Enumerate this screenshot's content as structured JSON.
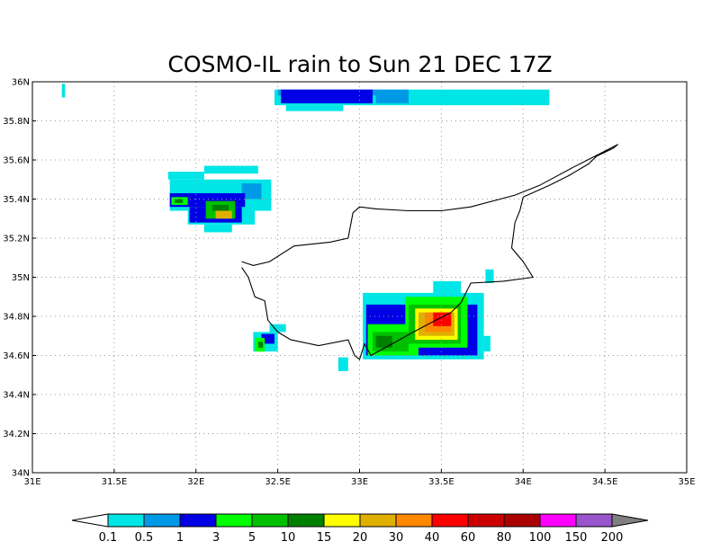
{
  "chart_data": {
    "type": "heatmap",
    "title": "COSMO-IL rain to Sun 21 DEC 17Z",
    "x_range": [
      31,
      35
    ],
    "y_range": [
      34,
      36
    ],
    "x_ticks": [
      {
        "value": 31,
        "label": "31E"
      },
      {
        "value": 31.5,
        "label": "31.5E"
      },
      {
        "value": 32,
        "label": "32E"
      },
      {
        "value": 32.5,
        "label": "32.5E"
      },
      {
        "value": 33,
        "label": "33E"
      },
      {
        "value": 33.5,
        "label": "33.5E"
      },
      {
        "value": 34,
        "label": "34E"
      },
      {
        "value": 34.5,
        "label": "34.5E"
      },
      {
        "value": 35,
        "label": "35E"
      }
    ],
    "y_ticks": [
      {
        "value": 34,
        "label": "34N"
      },
      {
        "value": 34.2,
        "label": "34.2N"
      },
      {
        "value": 34.4,
        "label": "34.4N"
      },
      {
        "value": 34.6,
        "label": "34.6N"
      },
      {
        "value": 34.8,
        "label": "34.8N"
      },
      {
        "value": 35,
        "label": "35N"
      },
      {
        "value": 35.2,
        "label": "35.2N"
      },
      {
        "value": 35.4,
        "label": "35.4N"
      },
      {
        "value": 35.6,
        "label": "35.6N"
      },
      {
        "value": 35.8,
        "label": "35.8N"
      },
      {
        "value": 36,
        "label": "36N"
      }
    ],
    "grid": true,
    "colorbar": {
      "labels": [
        "0.1",
        "0.5",
        "1",
        "3",
        "5",
        "10",
        "15",
        "20",
        "30",
        "40",
        "60",
        "80",
        "100",
        "150",
        "200"
      ],
      "colors": [
        "#00e5e5",
        "#0099e6",
        "#0000e6",
        "#00ff00",
        "#00c000",
        "#008000",
        "#ffff00",
        "#e0b000",
        "#ff8800",
        "#ff0000",
        "#cc0000",
        "#aa0000",
        "#ff00ff",
        "#9955cc"
      ],
      "under_color": "#ffffff",
      "over_color": "#808080"
    },
    "rain_cells": [
      {
        "lon0": 31.18,
        "lon1": 31.2,
        "lat0": 35.92,
        "lat1": 35.99,
        "class": "0.1"
      },
      {
        "lon0": 32.48,
        "lon1": 34.16,
        "lat0": 35.88,
        "lat1": 35.96,
        "class": "0.1"
      },
      {
        "lon0": 32.55,
        "lon1": 32.9,
        "lat0": 35.85,
        "lat1": 35.88,
        "class": "0.1"
      },
      {
        "lon0": 32.5,
        "lon1": 33.1,
        "lat0": 35.93,
        "lat1": 35.96,
        "class": "0.5"
      },
      {
        "lon0": 33.1,
        "lon1": 33.3,
        "lat0": 35.89,
        "lat1": 35.96,
        "class": "0.5"
      },
      {
        "lon0": 32.52,
        "lon1": 33.08,
        "lat0": 35.89,
        "lat1": 35.96,
        "class": "1"
      },
      {
        "lon0": 31.83,
        "lon1": 32.05,
        "lat0": 35.5,
        "lat1": 35.54,
        "class": "0.1"
      },
      {
        "lon0": 32.05,
        "lon1": 32.38,
        "lat0": 35.53,
        "lat1": 35.57,
        "class": "0.1"
      },
      {
        "lon0": 31.84,
        "lon1": 32.46,
        "lat0": 35.34,
        "lat1": 35.5,
        "class": "0.1"
      },
      {
        "lon0": 31.95,
        "lon1": 32.36,
        "lat0": 35.27,
        "lat1": 35.34,
        "class": "0.1"
      },
      {
        "lon0": 32.05,
        "lon1": 32.22,
        "lat0": 35.23,
        "lat1": 35.27,
        "class": "0.1"
      },
      {
        "lon0": 32.28,
        "lon1": 32.4,
        "lat0": 35.4,
        "lat1": 35.48,
        "class": "0.5"
      },
      {
        "lon0": 31.84,
        "lon1": 32.3,
        "lat0": 35.36,
        "lat1": 35.43,
        "class": "1"
      },
      {
        "lon0": 31.96,
        "lon1": 32.28,
        "lat0": 35.28,
        "lat1": 35.36,
        "class": "1"
      },
      {
        "lon0": 31.85,
        "lon1": 31.95,
        "lat0": 35.37,
        "lat1": 35.41,
        "class": "3"
      },
      {
        "lon0": 32.06,
        "lon1": 32.24,
        "lat0": 35.3,
        "lat1": 35.39,
        "class": "5"
      },
      {
        "lon0": 31.87,
        "lon1": 31.92,
        "lat0": 35.38,
        "lat1": 35.4,
        "class": "10"
      },
      {
        "lon0": 32.1,
        "lon1": 32.2,
        "lat0": 35.34,
        "lat1": 35.37,
        "class": "10"
      },
      {
        "lon0": 32.12,
        "lon1": 32.22,
        "lat0": 35.3,
        "lat1": 35.34,
        "class": "20"
      },
      {
        "lon0": 32.35,
        "lon1": 32.5,
        "lat0": 34.62,
        "lat1": 34.72,
        "class": "0.1"
      },
      {
        "lon0": 32.45,
        "lon1": 32.55,
        "lat0": 34.72,
        "lat1": 34.76,
        "class": "0.1"
      },
      {
        "lon0": 32.4,
        "lon1": 32.48,
        "lat0": 34.66,
        "lat1": 34.71,
        "class": "1"
      },
      {
        "lon0": 32.36,
        "lon1": 32.42,
        "lat0": 34.62,
        "lat1": 34.69,
        "class": "3"
      },
      {
        "lon0": 32.38,
        "lon1": 32.41,
        "lat0": 34.64,
        "lat1": 34.67,
        "class": "10"
      },
      {
        "lon0": 32.87,
        "lon1": 32.93,
        "lat0": 34.52,
        "lat1": 34.59,
        "class": "0.1"
      },
      {
        "lon0": 33.02,
        "lon1": 33.76,
        "lat0": 34.58,
        "lat1": 34.92,
        "class": "0.1"
      },
      {
        "lon0": 33.45,
        "lon1": 33.62,
        "lat0": 34.92,
        "lat1": 34.98,
        "class": "0.1"
      },
      {
        "lon0": 33.77,
        "lon1": 33.82,
        "lat0": 34.97,
        "lat1": 35.04,
        "class": "0.1"
      },
      {
        "lon0": 33.76,
        "lon1": 33.8,
        "lat0": 34.62,
        "lat1": 34.7,
        "class": "0.1"
      },
      {
        "lon0": 33.04,
        "lon1": 33.72,
        "lat0": 34.6,
        "lat1": 34.86,
        "class": "1"
      },
      {
        "lon0": 33.05,
        "lon1": 33.36,
        "lat0": 34.6,
        "lat1": 34.76,
        "class": "3"
      },
      {
        "lon0": 33.28,
        "lon1": 33.66,
        "lat0": 34.64,
        "lat1": 34.9,
        "class": "3"
      },
      {
        "lon0": 33.08,
        "lon1": 33.3,
        "lat0": 34.62,
        "lat1": 34.72,
        "class": "5"
      },
      {
        "lon0": 33.3,
        "lon1": 33.62,
        "lat0": 34.66,
        "lat1": 34.86,
        "class": "5"
      },
      {
        "lon0": 33.1,
        "lon1": 33.2,
        "lat0": 34.64,
        "lat1": 34.7,
        "class": "10"
      },
      {
        "lon0": 33.34,
        "lon1": 33.6,
        "lat0": 34.68,
        "lat1": 34.84,
        "class": "15"
      },
      {
        "lon0": 33.36,
        "lon1": 33.58,
        "lat0": 34.7,
        "lat1": 34.82,
        "class": "20"
      },
      {
        "lon0": 33.4,
        "lon1": 33.56,
        "lat0": 34.72,
        "lat1": 34.82,
        "class": "30"
      },
      {
        "lon0": 33.45,
        "lon1": 33.56,
        "lat0": 34.75,
        "lat1": 34.82,
        "class": "40"
      }
    ],
    "coastline": [
      [
        32.28,
        35.08
      ],
      [
        32.35,
        35.06
      ],
      [
        32.45,
        35.08
      ],
      [
        32.6,
        35.16
      ],
      [
        32.82,
        35.18
      ],
      [
        32.93,
        35.2
      ],
      [
        32.96,
        35.33
      ],
      [
        33.0,
        35.36
      ],
      [
        33.1,
        35.35
      ],
      [
        33.3,
        35.34
      ],
      [
        33.5,
        35.34
      ],
      [
        33.68,
        35.36
      ],
      [
        33.95,
        35.42
      ],
      [
        34.1,
        35.47
      ],
      [
        34.3,
        35.56
      ],
      [
        34.44,
        35.62
      ],
      [
        34.58,
        35.68
      ],
      [
        34.55,
        35.66
      ],
      [
        34.45,
        35.62
      ],
      [
        34.4,
        35.58
      ],
      [
        34.28,
        35.52
      ],
      [
        34.16,
        35.47
      ],
      [
        34.0,
        35.41
      ],
      [
        33.98,
        35.34
      ],
      [
        33.95,
        35.28
      ],
      [
        33.93,
        35.15
      ],
      [
        34.0,
        35.08
      ],
      [
        34.06,
        35.0
      ],
      [
        33.88,
        34.98
      ],
      [
        33.68,
        34.97
      ],
      [
        33.62,
        34.87
      ],
      [
        33.56,
        34.82
      ],
      [
        33.42,
        34.76
      ],
      [
        33.33,
        34.72
      ],
      [
        33.2,
        34.66
      ],
      [
        33.07,
        34.6
      ],
      [
        33.03,
        34.66
      ],
      [
        33.0,
        34.58
      ],
      [
        32.97,
        34.6
      ],
      [
        32.93,
        34.68
      ],
      [
        32.87,
        34.67
      ],
      [
        32.75,
        34.65
      ],
      [
        32.58,
        34.68
      ],
      [
        32.5,
        34.72
      ],
      [
        32.44,
        34.78
      ],
      [
        32.42,
        34.88
      ],
      [
        32.36,
        34.9
      ],
      [
        32.32,
        35.0
      ],
      [
        32.28,
        35.05
      ]
    ]
  }
}
